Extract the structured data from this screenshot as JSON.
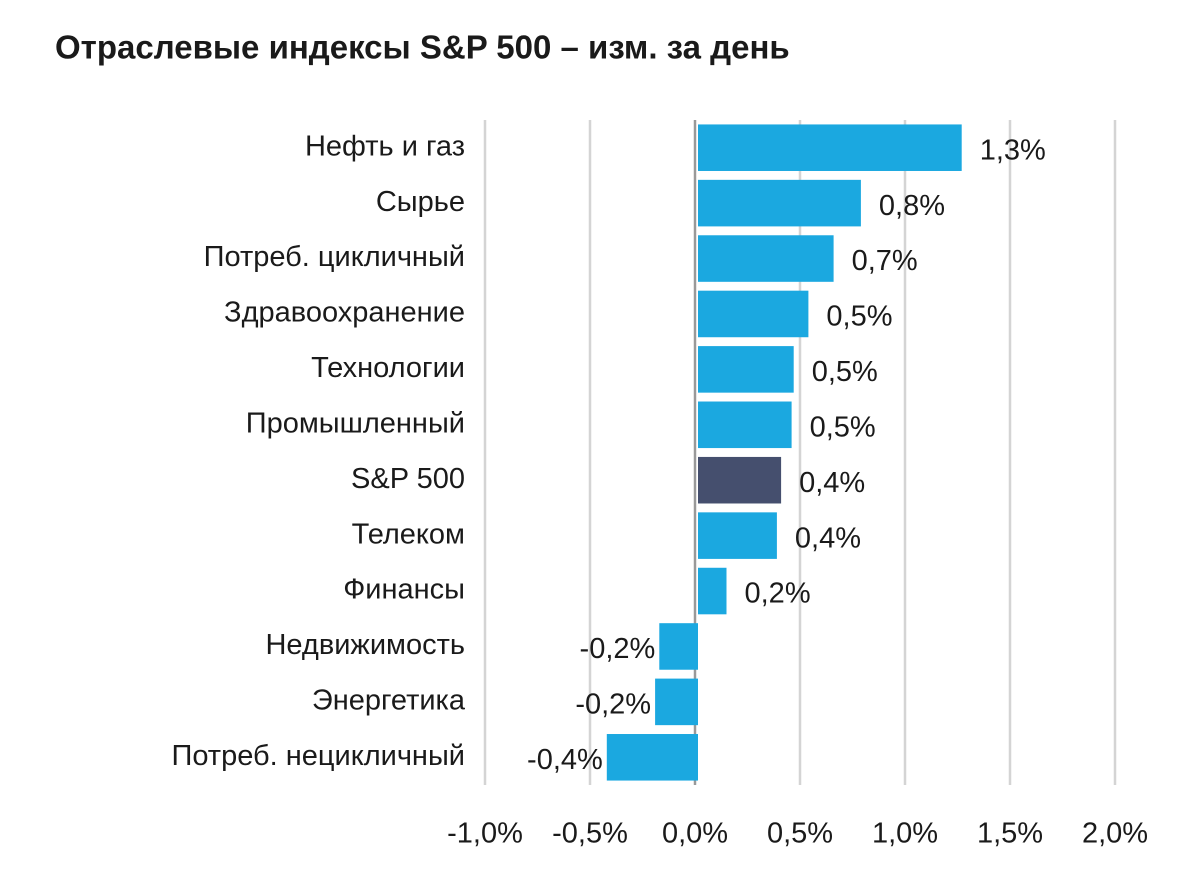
{
  "chart_data": {
    "type": "barh",
    "title": "Отраслевые индексы S&P 500 – изм. за день",
    "categories": [
      "Нефть и газ",
      "Сырье",
      "Потреб. цикличный",
      "Здравоохранение",
      "Технологии",
      "Промышленный",
      "S&P 500",
      "Телеком",
      "Финансы",
      "Недвижимость",
      "Энергетика",
      "Потреб. нецикличный"
    ],
    "values": [
      1.27,
      0.79,
      0.66,
      0.54,
      0.47,
      0.46,
      0.41,
      0.39,
      0.15,
      -0.17,
      -0.19,
      -0.42
    ],
    "value_labels": [
      "1,3%",
      "0,8%",
      "0,7%",
      "0,5%",
      "0,5%",
      "0,5%",
      "0,4%",
      "0,4%",
      "0,2%",
      "-0,2%",
      "-0,2%",
      "-0,4%"
    ],
    "colors": [
      "#1ba8e0",
      "#1ba8e0",
      "#1ba8e0",
      "#1ba8e0",
      "#1ba8e0",
      "#1ba8e0",
      "#454f6e",
      "#1ba8e0",
      "#1ba8e0",
      "#1ba8e0",
      "#1ba8e0",
      "#1ba8e0"
    ],
    "xlim": [
      -1.0,
      2.0
    ],
    "xticks": [
      {
        "value": -1.0,
        "label": "-1,0%"
      },
      {
        "value": -0.5,
        "label": "-0,5%"
      },
      {
        "value": 0.0,
        "label": "0,0%"
      },
      {
        "value": 0.5,
        "label": "0,5%"
      },
      {
        "value": 1.0,
        "label": "1,0%"
      },
      {
        "value": 1.5,
        "label": "1,5%"
      },
      {
        "value": 2.0,
        "label": "2,0%"
      }
    ],
    "grid": true
  }
}
